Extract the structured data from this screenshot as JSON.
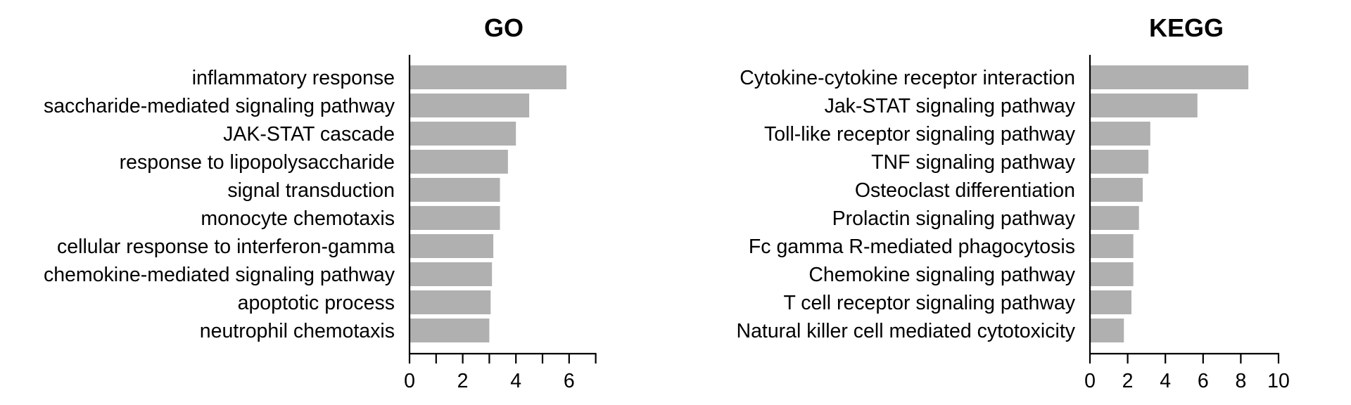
{
  "bar_color": "#b0b0b0",
  "chart_data": [
    {
      "type": "bar",
      "orientation": "horizontal",
      "title": "GO",
      "xlabel": "",
      "ylabel": "",
      "xlim": [
        0,
        7
      ],
      "xticks": [
        0,
        2,
        4,
        6
      ],
      "minor_xticks": [
        1,
        3,
        5,
        7
      ],
      "categories": [
        "inflammatory response",
        "saccharide-mediated signaling pathway",
        "JAK-STAT cascade",
        "response to lipopolysaccharide",
        "signal transduction",
        "monocyte chemotaxis",
        "cellular response to interferon-gamma",
        "chemokine-mediated signaling pathway",
        "apoptotic process",
        "neutrophil chemotaxis"
      ],
      "values": [
        5.9,
        4.5,
        4.0,
        3.7,
        3.4,
        3.4,
        3.15,
        3.1,
        3.05,
        3.0
      ],
      "grid": false,
      "legend": "none"
    },
    {
      "type": "bar",
      "orientation": "horizontal",
      "title": "KEGG",
      "xlabel": "",
      "ylabel": "",
      "xlim": [
        0,
        10
      ],
      "xticks": [
        0,
        2,
        4,
        6,
        8,
        10
      ],
      "minor_xticks": [],
      "categories": [
        "Cytokine-cytokine receptor interaction",
        "Jak-STAT signaling pathway",
        "Toll-like receptor signaling pathway",
        "TNF signaling pathway",
        "Osteoclast differentiation",
        "Prolactin signaling pathway",
        "Fc gamma R-mediated phagocytosis",
        "Chemokine signaling pathway",
        "T cell receptor signaling pathway",
        "Natural killer cell mediated cytotoxicity"
      ],
      "values": [
        8.4,
        5.7,
        3.2,
        3.1,
        2.8,
        2.6,
        2.3,
        2.3,
        2.2,
        1.8
      ],
      "grid": false,
      "legend": "none"
    }
  ]
}
